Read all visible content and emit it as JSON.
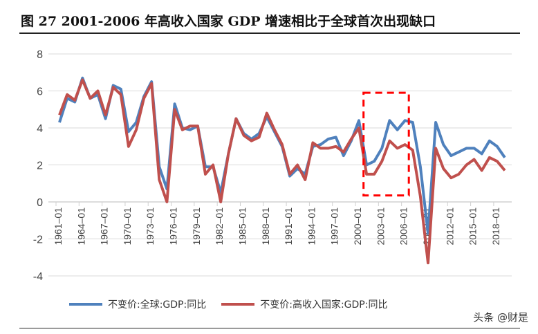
{
  "title": "图 27 2001-2006 年高收入国家 GDP 增速相比于全球首次出现缺口",
  "watermark": "头条 @财是",
  "chart_data": {
    "type": "line",
    "title": "",
    "xlabel": "",
    "ylabel": "",
    "ylim": [
      -4,
      8
    ],
    "yticks": [
      -4,
      -2,
      0,
      2,
      4,
      6,
      8
    ],
    "grid": true,
    "legend_position": "bottom",
    "x": [
      1961,
      1962,
      1963,
      1964,
      1965,
      1966,
      1967,
      1968,
      1969,
      1970,
      1971,
      1972,
      1973,
      1974,
      1975,
      1976,
      1977,
      1978,
      1979,
      1980,
      1981,
      1982,
      1983,
      1984,
      1985,
      1986,
      1987,
      1988,
      1989,
      1990,
      1991,
      1992,
      1993,
      1994,
      1995,
      1996,
      1997,
      1998,
      1999,
      2000,
      2001,
      2002,
      2003,
      2004,
      2005,
      2006,
      2007,
      2008,
      2009,
      2010,
      2011,
      2012,
      2013,
      2014,
      2015,
      2016,
      2017,
      2018,
      2019
    ],
    "xtick_labels": [
      "1961-01",
      "1964-01",
      "1967-01",
      "1970-01",
      "1973-01",
      "1976-01",
      "1979-01",
      "1982-01",
      "1985-01",
      "1988-01",
      "1991-01",
      "1994-01",
      "1997-01",
      "2000-01",
      "2003-01",
      "2006-01",
      "2009-01",
      "2012-01",
      "2015-01",
      "2018-01"
    ],
    "series": [
      {
        "name": "不变价:全球:GDP:同比",
        "color": "#4f81bd",
        "values": [
          4.3,
          5.6,
          5.4,
          6.7,
          5.6,
          5.8,
          4.5,
          6.3,
          6.1,
          3.8,
          4.3,
          5.7,
          6.5,
          1.9,
          0.7,
          5.3,
          4.0,
          3.9,
          4.1,
          1.9,
          1.9,
          0.5,
          2.6,
          4.5,
          3.7,
          3.4,
          3.7,
          4.6,
          3.8,
          3.0,
          1.4,
          1.8,
          1.5,
          3.0,
          3.1,
          3.4,
          3.5,
          2.5,
          3.3,
          4.4,
          2.0,
          2.2,
          2.9,
          4.4,
          3.9,
          4.4,
          4.3,
          1.9,
          -1.7,
          4.3,
          3.1,
          2.5,
          2.7,
          2.9,
          2.9,
          2.6,
          3.3,
          3.0,
          2.4
        ]
      },
      {
        "name": "不变价:高收入国家:GDP:同比",
        "color": "#c0504d",
        "values": [
          4.7,
          5.8,
          5.5,
          6.6,
          5.6,
          6.0,
          4.7,
          6.2,
          5.8,
          3.0,
          3.9,
          5.6,
          6.4,
          1.2,
          0.0,
          5.0,
          3.9,
          4.1,
          4.1,
          1.5,
          2.0,
          0.0,
          2.6,
          4.5,
          3.6,
          3.3,
          3.5,
          4.8,
          3.9,
          3.1,
          1.5,
          2.0,
          1.2,
          3.2,
          2.9,
          2.9,
          3.0,
          2.7,
          3.4,
          4.0,
          1.5,
          1.5,
          2.2,
          3.3,
          2.9,
          3.1,
          2.8,
          0.3,
          -3.3,
          2.9,
          1.8,
          1.3,
          1.5,
          2.0,
          2.3,
          1.7,
          2.4,
          2.2,
          1.7
        ]
      }
    ],
    "highlight_box": {
      "x": [
        2000.6,
        2006.5
      ],
      "y": [
        0.35,
        5.9
      ],
      "color": "#ff0000",
      "style": "dashed"
    }
  }
}
